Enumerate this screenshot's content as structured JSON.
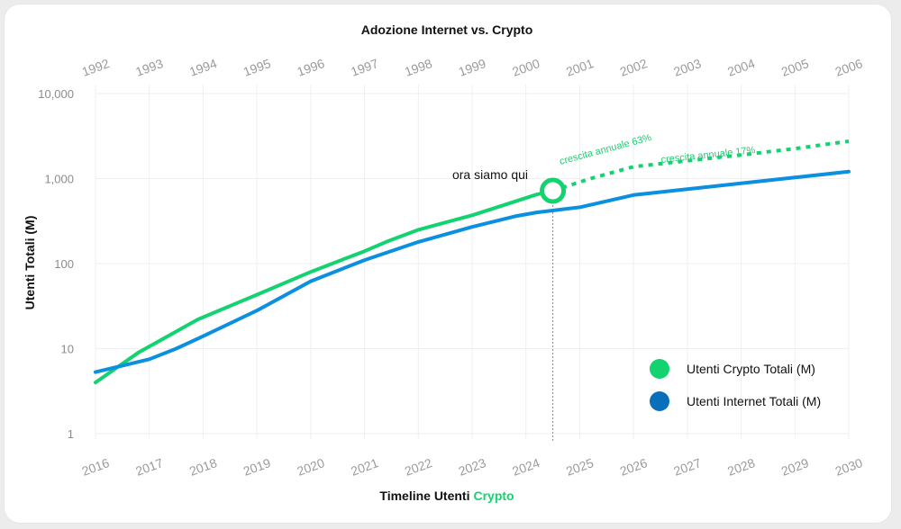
{
  "colors": {
    "crypto": "#12d36f",
    "internet": "#0b8fe0",
    "internet_legend": "#0a6fba",
    "grid": "#efefef"
  },
  "chart_data": {
    "type": "line",
    "title": "Adozione Internet vs. Crypto",
    "xlabel_prefix": "Timeline Utenti",
    "xlabel_highlight": "Crypto",
    "ylabel": "Utenti Totali (M)",
    "y_scale": "log",
    "ylim": [
      1,
      10000
    ],
    "y_ticks": [
      {
        "value": 1,
        "label": "1"
      },
      {
        "value": 10,
        "label": "10"
      },
      {
        "value": 100,
        "label": "100"
      },
      {
        "value": 1000,
        "label": "1,000"
      },
      {
        "value": 10000,
        "label": "10,000"
      }
    ],
    "x_bottom_ticks": [
      "2016",
      "2017",
      "2018",
      "2019",
      "2020",
      "2021",
      "2022",
      "2023",
      "2024",
      "2025",
      "2026",
      "2027",
      "2028",
      "2029",
      "2030"
    ],
    "x_top_ticks": [
      "1992",
      "1993",
      "1994",
      "1995",
      "1996",
      "1997",
      "1998",
      "1999",
      "2000",
      "2001",
      "2002",
      "2003",
      "2004",
      "2005",
      "2006"
    ],
    "x_range": [
      2016,
      2030
    ],
    "series": [
      {
        "name": "Utenti Crypto Totali (M)",
        "color_key": "crypto",
        "x": [
          2016,
          2016.8,
          2017.9,
          2019,
          2020,
          2021,
          2021.4,
          2022,
          2023,
          2024.2,
          2024.5
        ],
        "y": [
          4,
          9,
          22,
          43,
          80,
          140,
          180,
          250,
          370,
          650,
          720
        ]
      },
      {
        "name": "Utenti Internet Totali (M)",
        "color_key": "internet",
        "x": [
          2016,
          2017,
          2017.5,
          2018,
          2019,
          2020,
          2021,
          2022,
          2023,
          2023.8,
          2024.2,
          2025,
          2026,
          2027,
          2028,
          2029,
          2030
        ],
        "y": [
          5.3,
          7.5,
          10,
          14,
          28,
          62,
          110,
          180,
          270,
          360,
          400,
          460,
          640,
          750,
          880,
          1030,
          1210
        ]
      },
      {
        "name": "crypto-projection",
        "color_key": "crypto",
        "dashed": true,
        "x": [
          2024.5,
          2025.2,
          2026,
          2027,
          2028,
          2029,
          2030
        ],
        "y": [
          720,
          1000,
          1380,
          1620,
          1900,
          2250,
          2750
        ]
      }
    ],
    "annotations": {
      "current_marker_label": "ora siamo qui",
      "current_x": 2024.5,
      "current_y": 720,
      "rate1": "crescita annuale 63%",
      "rate2": "crescita annuale 17%"
    },
    "legend_position": "bottom-right"
  }
}
